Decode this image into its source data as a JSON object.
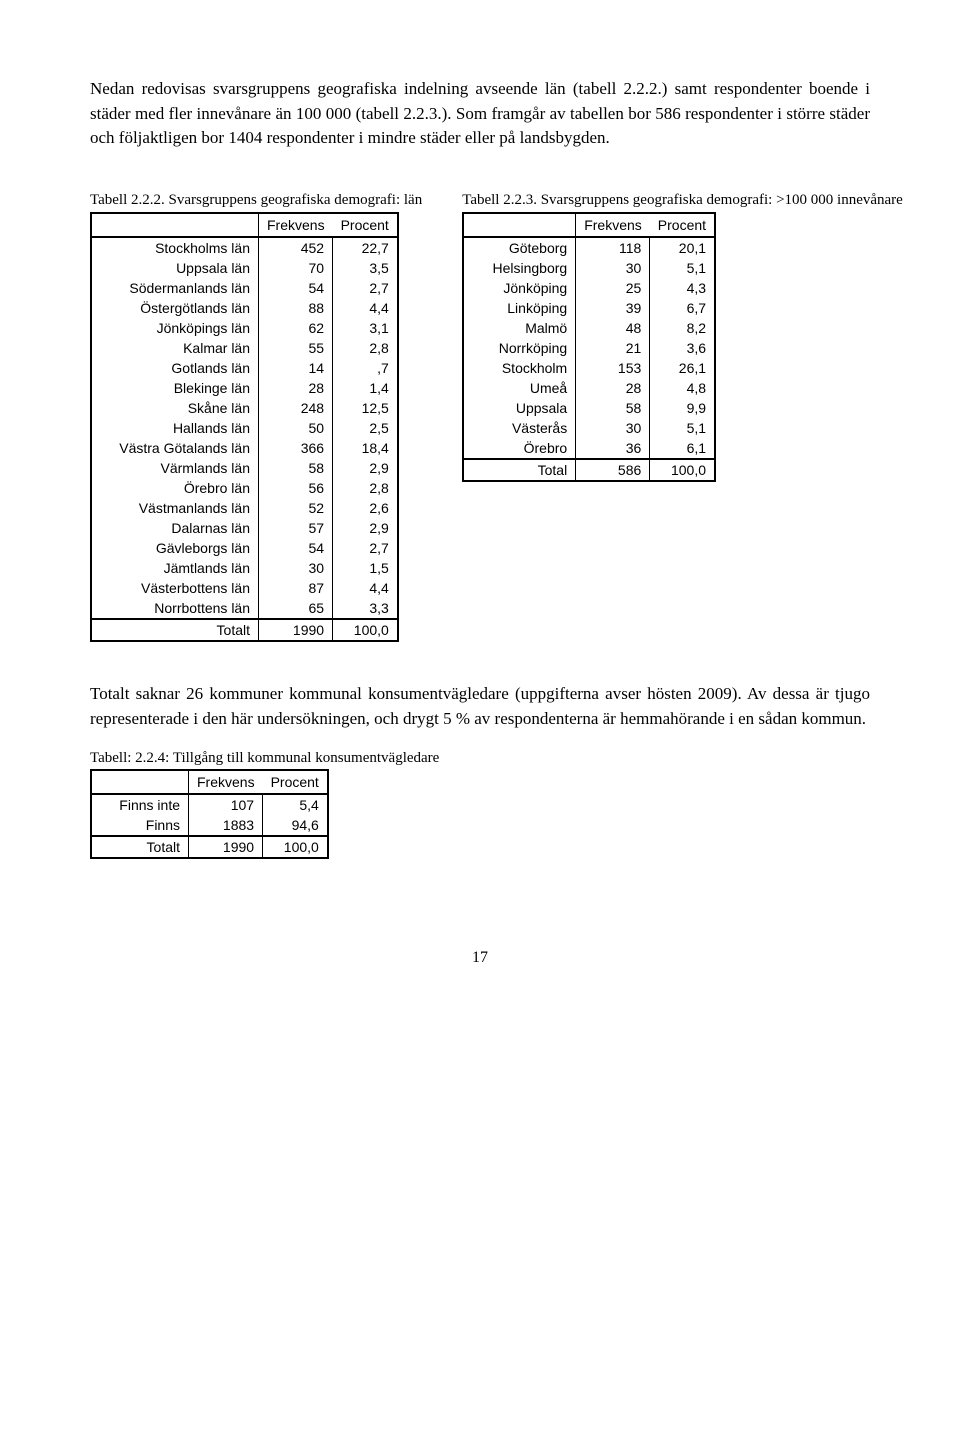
{
  "intro": "Nedan redovisas svarsgruppens geografiska indelning avseende län (tabell 2.2.2.) samt respondenter boende i städer med fler innevånare än 100 000 (tabell 2.2.3.). Som framgår av tabellen bor 586 respondenter i större städer och följaktligen bor 1404 respondenter i mindre städer eller på landsbygden.",
  "table_222": {
    "caption": "Tabell 2.2.2. Svarsgruppens geografiska demografi: län",
    "columns": [
      "",
      "Frekvens",
      "Procent"
    ],
    "rows": [
      [
        "Stockholms län",
        "452",
        "22,7"
      ],
      [
        "Uppsala län",
        "70",
        "3,5"
      ],
      [
        "Södermanlands län",
        "54",
        "2,7"
      ],
      [
        "Östergötlands län",
        "88",
        "4,4"
      ],
      [
        "Jönköpings län",
        "62",
        "3,1"
      ],
      [
        "Kalmar län",
        "55",
        "2,8"
      ],
      [
        "Gotlands län",
        "14",
        ",7"
      ],
      [
        "Blekinge län",
        "28",
        "1,4"
      ],
      [
        "Skåne län",
        "248",
        "12,5"
      ],
      [
        "Hallands län",
        "50",
        "2,5"
      ],
      [
        "Västra Götalands län",
        "366",
        "18,4"
      ],
      [
        "Värmlands län",
        "58",
        "2,9"
      ],
      [
        "Örebro län",
        "56",
        "2,8"
      ],
      [
        "Västmanlands län",
        "52",
        "2,6"
      ],
      [
        "Dalarnas län",
        "57",
        "2,9"
      ],
      [
        "Gävleborgs län",
        "54",
        "2,7"
      ],
      [
        "Jämtlands län",
        "30",
        "1,5"
      ],
      [
        "Västerbottens län",
        "87",
        "4,4"
      ],
      [
        "Norrbottens län",
        "65",
        "3,3"
      ]
    ],
    "total": [
      "Totalt",
      "1990",
      "100,0"
    ]
  },
  "table_223": {
    "caption": "Tabell 2.2.3. Svarsgruppens geografiska demografi: >100 000 innevånare",
    "columns": [
      "",
      "Frekvens",
      "Procent"
    ],
    "rows": [
      [
        "Göteborg",
        "118",
        "20,1"
      ],
      [
        "Helsingborg",
        "30",
        "5,1"
      ],
      [
        "Jönköping",
        "25",
        "4,3"
      ],
      [
        "Linköping",
        "39",
        "6,7"
      ],
      [
        "Malmö",
        "48",
        "8,2"
      ],
      [
        "Norrköping",
        "21",
        "3,6"
      ],
      [
        "Stockholm",
        "153",
        "26,1"
      ],
      [
        "Umeå",
        "28",
        "4,8"
      ],
      [
        "Uppsala",
        "58",
        "9,9"
      ],
      [
        "Västerås",
        "30",
        "5,1"
      ],
      [
        "Örebro",
        "36",
        "6,1"
      ]
    ],
    "total": [
      "Total",
      "586",
      "100,0"
    ]
  },
  "after": "Totalt saknar 26 kommuner kommunal konsumentvägledare (uppgifterna avser hösten 2009). Av dessa är tjugo representerade i den här undersökningen, och drygt 5 % av respondenterna är hemmahörande i en sådan kommun.",
  "table_224": {
    "caption": "Tabell: 2.2.4: Tillgång till kommunal konsumentvägledare",
    "columns": [
      "",
      "Frekvens",
      "Procent"
    ],
    "rows": [
      [
        "Finns inte",
        "107",
        "5,4"
      ],
      [
        "Finns",
        "1883",
        "94,6"
      ]
    ],
    "total": [
      "Totalt",
      "1990",
      "100,0"
    ]
  },
  "pagenum": "17"
}
